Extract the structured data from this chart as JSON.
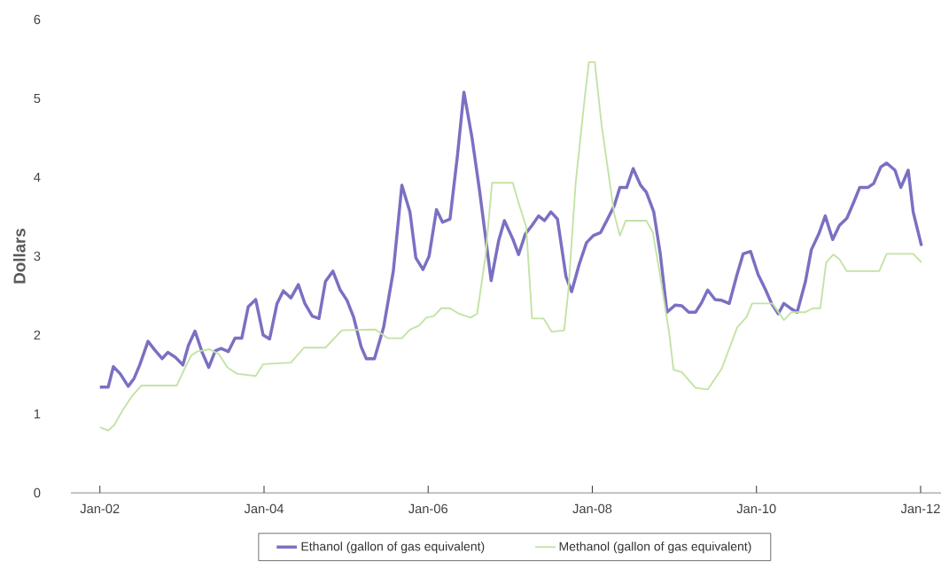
{
  "chart_data": {
    "type": "line",
    "ylabel": "Dollars",
    "xlim": [
      "2001-08-25",
      "2012-04-01"
    ],
    "ylim": [
      0,
      6
    ],
    "xticks": [
      {
        "value": "2002-01",
        "label": "Jan-02"
      },
      {
        "value": "2004-01",
        "label": "Jan-04"
      },
      {
        "value": "2006-01",
        "label": "Jan-06"
      },
      {
        "value": "2008-01",
        "label": "Jan-08"
      },
      {
        "value": "2010-01",
        "label": "Jan-10"
      },
      {
        "value": "2012-01",
        "label": "Jan-12"
      }
    ],
    "yticks": [
      0,
      1,
      2,
      3,
      4,
      5,
      6
    ],
    "legend": "bottom",
    "series": [
      {
        "name": "Ethanol (gallon of gas equivalent)",
        "color": "#7a70c2",
        "x": [
          "2002-01-01",
          "2002-02-07",
          "2002-03-02",
          "2002-04-01",
          "2002-05-07",
          "2002-06-02",
          "2002-06-27",
          "2002-08-03",
          "2002-09-02",
          "2002-10-05",
          "2002-10-30",
          "2002-12-02",
          "2003-01-05",
          "2003-01-30",
          "2003-02-28",
          "2003-04-01",
          "2003-04-30",
          "2003-05-29",
          "2003-06-24",
          "2003-07-26",
          "2003-08-25",
          "2003-09-24",
          "2003-10-23",
          "2003-11-25",
          "2003-12-28",
          "2004-01-26",
          "2004-02-28",
          "2004-03-27",
          "2004-04-30",
          "2004-06-02",
          "2004-07-01",
          "2004-08-03",
          "2004-09-02",
          "2004-10-01",
          "2004-11-03",
          "2004-12-06",
          "2005-01-05",
          "2005-02-03",
          "2005-03-09",
          "2005-04-01",
          "2005-05-07",
          "2005-06-17",
          "2005-07-30",
          "2005-09-06",
          "2005-10-12",
          "2005-11-07",
          "2005-12-09",
          "2006-01-05",
          "2006-02-07",
          "2006-03-06",
          "2006-04-08",
          "2006-05-11",
          "2006-06-09",
          "2006-07-15",
          "2006-08-18",
          "2006-10-08",
          "2006-11-10",
          "2006-12-06",
          "2007-01-12",
          "2007-02-07",
          "2007-03-09",
          "2007-04-08",
          "2007-05-07",
          "2007-06-02",
          "2007-07-01",
          "2007-07-30",
          "2007-09-06",
          "2007-10-01",
          "2007-11-03",
          "2007-12-06",
          "2008-01-05",
          "2008-02-07",
          "2008-03-09",
          "2008-04-08",
          "2008-05-03",
          "2008-06-02",
          "2008-07-01",
          "2008-08-03",
          "2008-08-29",
          "2008-10-01",
          "2008-10-30",
          "2008-11-29",
          "2009-01-05",
          "2009-02-03",
          "2009-03-06",
          "2009-04-05",
          "2009-04-30",
          "2009-05-29",
          "2009-07-01",
          "2009-07-30",
          "2009-09-02",
          "2009-10-05",
          "2009-11-03",
          "2009-12-06",
          "2010-01-08",
          "2010-02-11",
          "2010-03-09",
          "2010-04-08",
          "2010-05-03",
          "2010-06-06",
          "2010-07-01",
          "2010-08-07",
          "2010-09-02",
          "2010-10-05",
          "2010-11-03",
          "2010-12-06",
          "2011-01-05",
          "2011-02-07",
          "2011-03-09",
          "2011-04-05",
          "2011-05-11",
          "2011-06-06",
          "2011-07-08",
          "2011-08-03",
          "2011-09-09",
          "2011-10-05",
          "2011-11-07",
          "2011-11-29",
          "2012-01-05"
        ],
        "values": [
          1.34,
          1.34,
          1.6,
          1.51,
          1.35,
          1.45,
          1.62,
          1.92,
          1.81,
          1.7,
          1.78,
          1.72,
          1.62,
          1.87,
          2.05,
          1.78,
          1.59,
          1.8,
          1.83,
          1.79,
          1.96,
          1.96,
          2.36,
          2.45,
          2.0,
          1.95,
          2.4,
          2.56,
          2.47,
          2.64,
          2.4,
          2.24,
          2.21,
          2.68,
          2.81,
          2.57,
          2.44,
          2.23,
          1.85,
          1.7,
          1.7,
          2.1,
          2.81,
          3.9,
          3.56,
          2.98,
          2.83,
          3.0,
          3.59,
          3.43,
          3.47,
          4.27,
          5.08,
          4.5,
          3.82,
          2.69,
          3.19,
          3.45,
          3.22,
          3.02,
          3.28,
          3.39,
          3.51,
          3.45,
          3.56,
          3.47,
          2.74,
          2.55,
          2.89,
          3.17,
          3.26,
          3.3,
          3.47,
          3.64,
          3.87,
          3.87,
          4.11,
          3.9,
          3.81,
          3.56,
          3.03,
          2.29,
          2.38,
          2.37,
          2.29,
          2.29,
          2.4,
          2.57,
          2.45,
          2.44,
          2.4,
          2.75,
          3.03,
          3.06,
          2.77,
          2.57,
          2.4,
          2.27,
          2.4,
          2.33,
          2.29,
          2.68,
          3.08,
          3.28,
          3.51,
          3.21,
          3.39,
          3.48,
          3.68,
          3.87,
          3.87,
          3.92,
          4.13,
          4.18,
          4.09,
          3.87,
          4.09,
          3.56,
          3.13
        ]
      },
      {
        "name": "Methanol (gallon of gas equivalent)",
        "color": "#c2e3a4",
        "x": [
          "2002-01-01",
          "2002-02-07",
          "2002-03-06",
          "2002-04-15",
          "2002-05-22",
          "2002-07-05",
          "2002-12-09",
          "2003-01-12",
          "2003-02-11",
          "2003-03-09",
          "2003-05-03",
          "2003-06-13",
          "2003-07-22",
          "2003-09-02",
          "2003-11-25",
          "2003-12-28",
          "2004-04-30",
          "2004-06-27",
          "2004-10-01",
          "2004-12-13",
          "2005-05-11",
          "2005-07-05",
          "2005-09-06",
          "2005-10-12",
          "2005-11-21",
          "2005-12-24",
          "2006-01-26",
          "2006-02-28",
          "2006-04-08",
          "2006-05-18",
          "2006-07-08",
          "2006-08-07",
          "2006-09-13",
          "2006-10-12",
          "2007-01-12",
          "2007-02-11",
          "2007-03-13",
          "2007-04-08",
          "2007-05-29",
          "2007-07-05",
          "2007-08-29",
          "2007-09-17",
          "2007-10-19",
          "2007-11-29",
          "2007-12-17",
          "2008-01-12",
          "2008-02-11",
          "2008-03-09",
          "2008-04-08",
          "2008-05-03",
          "2008-05-29",
          "2008-08-29",
          "2008-09-27",
          "2008-10-30",
          "2008-12-09",
          "2008-12-28",
          "2009-02-03",
          "2009-04-05",
          "2009-05-29",
          "2009-07-30",
          "2009-10-08",
          "2009-11-18",
          "2009-12-13",
          "2010-03-13",
          "2010-05-03",
          "2010-06-06",
          "2010-08-07",
          "2010-09-09",
          "2010-10-12",
          "2010-11-07",
          "2010-12-09",
          "2011-01-05",
          "2011-02-07",
          "2011-07-01",
          "2011-08-03",
          "2011-11-29",
          "2012-01-05"
        ],
        "values": [
          0.83,
          0.79,
          0.86,
          1.06,
          1.22,
          1.36,
          1.36,
          1.57,
          1.74,
          1.79,
          1.82,
          1.76,
          1.59,
          1.51,
          1.48,
          1.63,
          1.65,
          1.84,
          1.84,
          2.06,
          2.07,
          1.96,
          1.96,
          2.07,
          2.12,
          2.22,
          2.24,
          2.34,
          2.34,
          2.27,
          2.22,
          2.27,
          3.0,
          3.93,
          3.93,
          3.64,
          3.37,
          2.21,
          2.21,
          2.04,
          2.06,
          2.58,
          3.93,
          5.03,
          5.46,
          5.46,
          4.67,
          4.13,
          3.53,
          3.26,
          3.45,
          3.45,
          3.3,
          2.74,
          2.02,
          1.56,
          1.53,
          1.33,
          1.31,
          1.57,
          2.1,
          2.23,
          2.4,
          2.4,
          2.19,
          2.29,
          2.29,
          2.34,
          2.34,
          2.92,
          3.02,
          2.96,
          2.81,
          2.81,
          3.03,
          3.03,
          2.92
        ]
      }
    ]
  }
}
